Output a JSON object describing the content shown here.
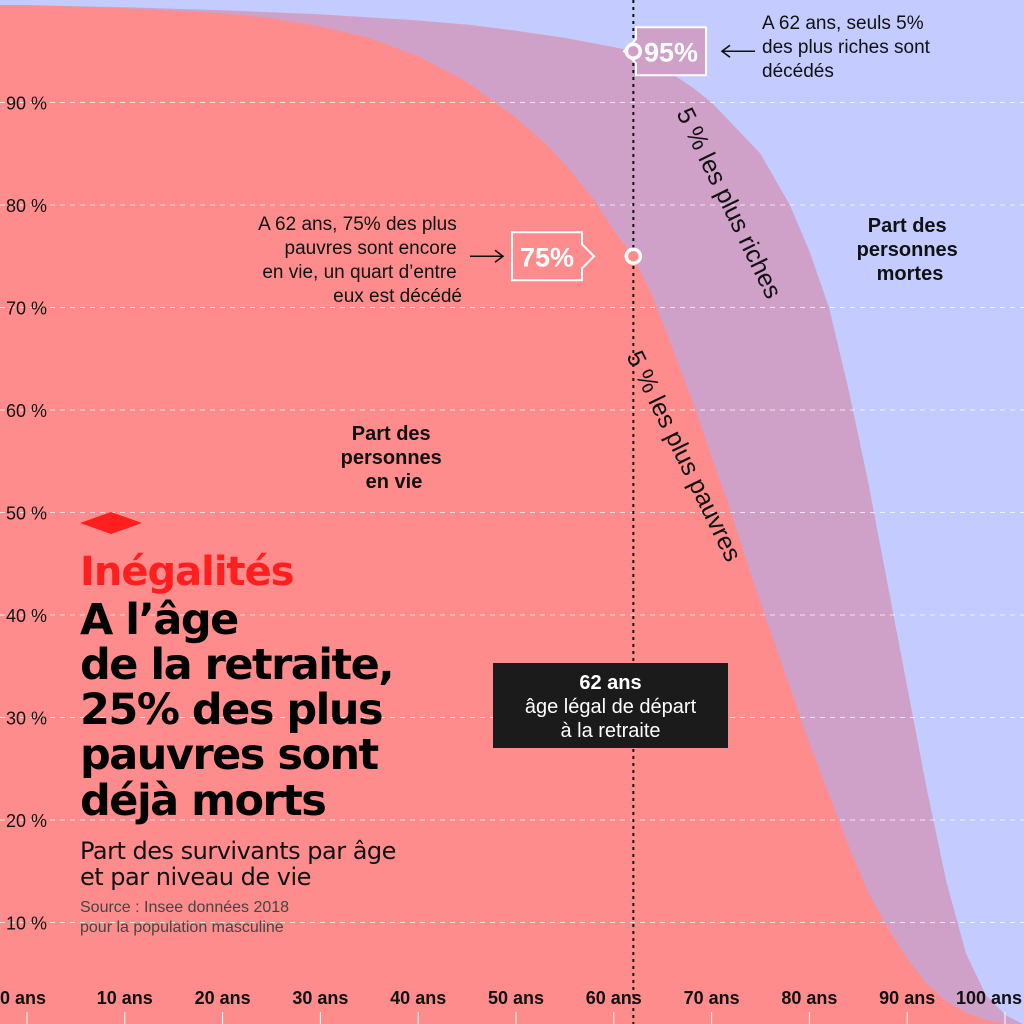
{
  "chart_data": {
    "type": "area",
    "title": "",
    "xlabel": "",
    "ylabel": "",
    "xlim": [
      0,
      105
    ],
    "ylim": [
      0,
      100
    ],
    "x_ticks": [
      0,
      10,
      20,
      30,
      40,
      50,
      60,
      70,
      80,
      90,
      100
    ],
    "x_tick_labels": [
      "0 ans",
      "10 ans",
      "20 ans",
      "30 ans",
      "40 ans",
      "50 ans",
      "60 ans",
      "70 ans",
      "80 ans",
      "90 ans",
      "100 ans"
    ],
    "y_ticks": [
      10,
      20,
      30,
      40,
      50,
      60,
      70,
      80,
      90
    ],
    "y_tick_labels": [
      "10 %",
      "20 %",
      "30 %",
      "40 %",
      "50 %",
      "60 %",
      "70 %",
      "80 %",
      "90 %"
    ],
    "grid": "horizontal-dashed",
    "series": [
      {
        "name": "5 % les plus riches",
        "color": "#cfa0c8",
        "x": [
          0,
          10,
          20,
          30,
          35,
          40,
          45,
          50,
          55,
          60,
          62,
          65,
          68,
          70,
          72,
          75,
          78,
          80,
          82,
          84,
          86,
          88,
          90,
          92,
          94,
          96,
          98,
          100,
          102
        ],
        "y": [
          99.5,
          99.3,
          99,
          98.6,
          98.3,
          98,
          97.6,
          97,
          96.3,
          95.4,
          95,
          93.4,
          91.5,
          90,
          88,
          85,
          80,
          75.5,
          70,
          62,
          53,
          43,
          33,
          23,
          14,
          7,
          3,
          1,
          0
        ]
      },
      {
        "name": "5 % les plus pauvres",
        "color": "#ff8c8c",
        "x": [
          0,
          10,
          20,
          25,
          30,
          35,
          40,
          45,
          50,
          53,
          55,
          58,
          60,
          62,
          64,
          66,
          68,
          70,
          72,
          74,
          76,
          78,
          80,
          82,
          84,
          86,
          88,
          90,
          92,
          94,
          96,
          98,
          100,
          102
        ],
        "y": [
          99.5,
          99.2,
          98.7,
          98.2,
          97.4,
          96.3,
          94.5,
          92,
          88.5,
          86,
          84,
          80.5,
          77.5,
          75,
          71,
          66,
          61,
          55.5,
          50,
          44,
          38.5,
          33,
          27.5,
          22.5,
          17.5,
          13,
          9.5,
          6.5,
          4,
          2.3,
          1.2,
          0.5,
          0.1,
          0
        ]
      }
    ],
    "area_labels": {
      "alive": [
        "Part des",
        "personnes",
        "en vie"
      ],
      "dead": [
        "Part des",
        "personnes",
        "mortes"
      ]
    },
    "reference_line": {
      "x": 62,
      "label_title": "62 ans",
      "label_lines": [
        "âge légal de départ",
        "à la retraite"
      ]
    },
    "annotations": [
      {
        "id": "rich",
        "x": 62,
        "y": 95,
        "value_label": "95%",
        "text_lines": [
          "A 62 ans, seuls 5%",
          "des plus riches sont",
          "décédés"
        ]
      },
      {
        "id": "poor",
        "x": 62,
        "y": 75,
        "value_label": "75%",
        "text_lines": [
          "A 62 ans, 75% des plus",
          "pauvres sont encore",
          "en vie, un quart d’entre",
          "eux est décédé"
        ]
      }
    ],
    "colors": {
      "dead_background": "#c4cbff",
      "rich_band": "#cfa0c8",
      "poor_area": "#ff8c8c",
      "kicker": "#ff1f1f",
      "label_box": "#1b1b1b"
    }
  },
  "header": {
    "kicker": "Inégalités",
    "headline_lines": [
      "A l’âge",
      "de la retraite,",
      "25% des plus",
      "pauvres sont",
      "déjà morts"
    ],
    "subtitle_lines": [
      "Part des survivants par âge",
      "et par niveau de vie"
    ],
    "source_lines": [
      "Source : Insee données 2018",
      "pour la population masculine"
    ]
  }
}
